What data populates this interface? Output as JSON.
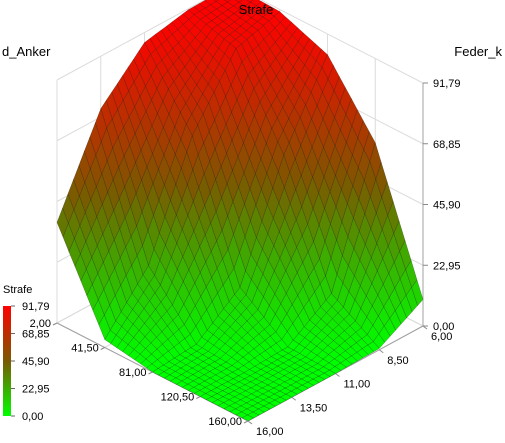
{
  "chart_data": {
    "type": "surface3d",
    "title": "Strafe",
    "x_axis": {
      "label": "d_Anker",
      "ticks": [
        "2,00",
        "41,50",
        "81,00",
        "120,50",
        "160,00"
      ],
      "range": [
        2,
        160
      ]
    },
    "y_axis": {
      "label": "Feder_k",
      "ticks": [
        "6,00",
        "8,50",
        "11,00",
        "13,50",
        "16,00"
      ],
      "range": [
        6,
        16
      ]
    },
    "z_axis": {
      "label": "",
      "ticks": [
        "0,00",
        "22,95",
        "45,90",
        "68,85",
        "91,79"
      ],
      "range": [
        0,
        91.79
      ]
    },
    "legend": {
      "title": "Strafe",
      "entries": [
        "91,79",
        "68,85",
        "45,90",
        "22,95",
        "0,00"
      ],
      "placement": "bottom-left"
    },
    "colorscale": {
      "low": "#00ff00",
      "mid": "#7a5a00",
      "high": "#ff0000"
    },
    "surface_samples": {
      "d_Anker": [
        2,
        41.5,
        81,
        120.5,
        160
      ],
      "Feder_k": [
        6,
        8.5,
        11,
        13.5,
        16
      ],
      "Strafe": [
        [
          91.79,
          91.4,
          88.0,
          72.0,
          38.0
        ],
        [
          91.0,
          86.0,
          62.0,
          22.0,
          3.0
        ],
        [
          84.0,
          55.0,
          14.0,
          1.5,
          0.0
        ],
        [
          60.0,
          12.0,
          0.8,
          0.0,
          0.0
        ],
        [
          10.0,
          0.5,
          0.0,
          0.0,
          0.0
        ]
      ]
    }
  }
}
